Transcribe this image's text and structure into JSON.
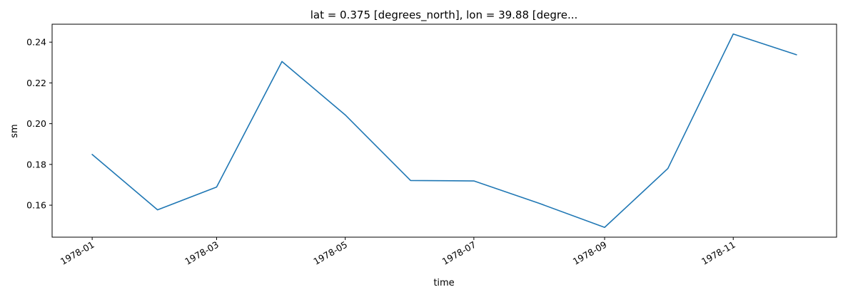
{
  "chart_data": {
    "type": "line",
    "title": "lat = 0.375 [degrees_north], lon = 39.88 [degre...",
    "xlabel": "time",
    "ylabel": "sm",
    "x": [
      "1978-01-01",
      "1978-02-01",
      "1978-03-01",
      "1978-04-01",
      "1978-05-01",
      "1978-06-01",
      "1978-07-01",
      "1978-08-01",
      "1978-09-01",
      "1978-10-01",
      "1978-11-01",
      "1978-12-01"
    ],
    "series": [
      {
        "color": "#1f77b4",
        "values": [
          0.1849,
          0.1577,
          0.1689,
          0.2305,
          0.2043,
          0.1721,
          0.1719,
          0.1609,
          0.1491,
          0.178,
          0.244,
          0.2338
        ]
      }
    ],
    "xlim": [
      "1977-12-13",
      "1978-12-20"
    ],
    "ylim": [
      0.1443,
      0.2488
    ],
    "x_ticks": [
      {
        "date": "1978-01-01",
        "label": "1978-01"
      },
      {
        "date": "1978-03-01",
        "label": "1978-03"
      },
      {
        "date": "1978-05-01",
        "label": "1978-05"
      },
      {
        "date": "1978-07-01",
        "label": "1978-07"
      },
      {
        "date": "1978-09-01",
        "label": "1978-09"
      },
      {
        "date": "1978-11-01",
        "label": "1978-11"
      }
    ],
    "y_ticks": [
      {
        "value": 0.16,
        "label": "0.16"
      },
      {
        "value": 0.18,
        "label": "0.18"
      },
      {
        "value": 0.2,
        "label": "0.20"
      },
      {
        "value": 0.22,
        "label": "0.22"
      },
      {
        "value": 0.24,
        "label": "0.24"
      }
    ],
    "grid": false,
    "legend": "none"
  }
}
